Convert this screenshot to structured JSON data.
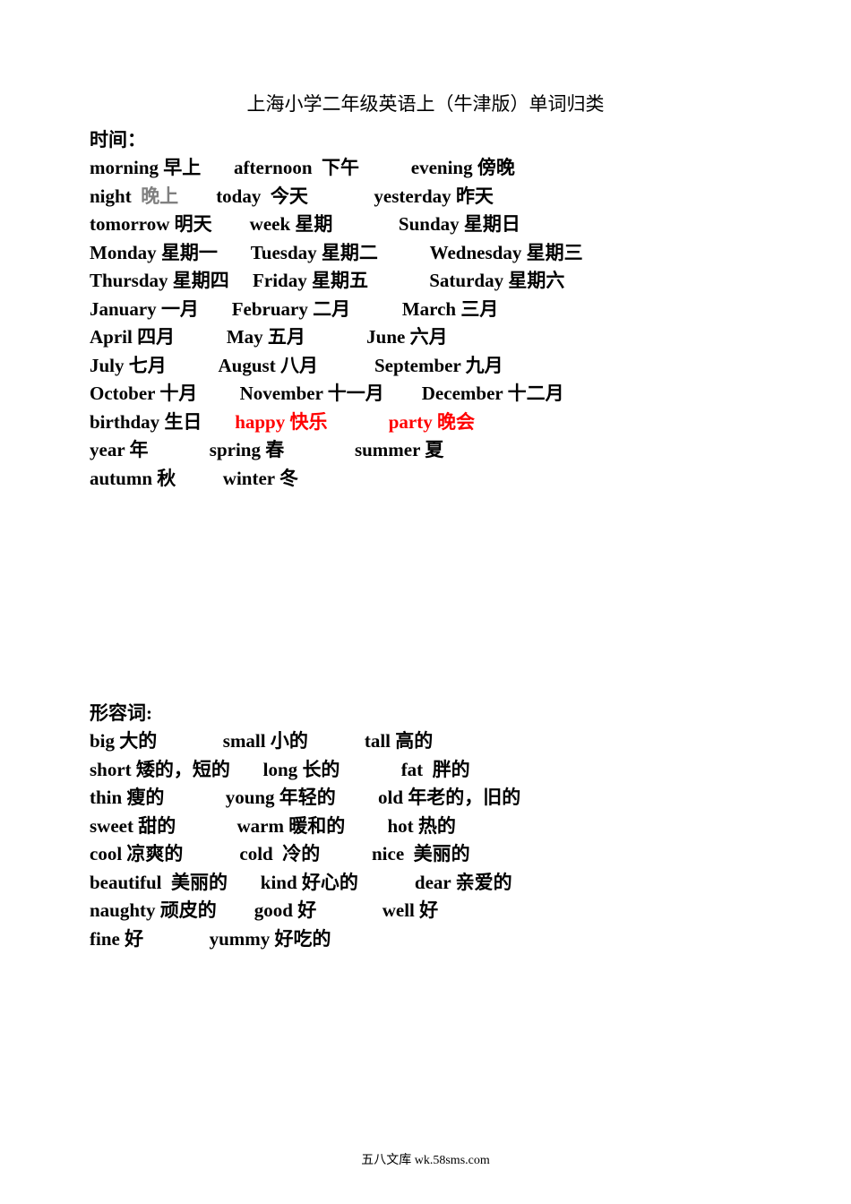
{
  "title": "上海小学二年级英语上（牛津版）单词归类",
  "section1_header": "时间：",
  "section2_header": "形容词:",
  "time_lines": [
    [
      {
        "en": "morning",
        "zh": " 早上       ",
        "bold": true
      },
      {
        "en": "afternoon ",
        "zh": " 下午           ",
        "bold": true
      },
      {
        "en": "evening",
        "zh": " 傍晚",
        "bold": true
      }
    ],
    [
      {
        "en": "night ",
        "zh": " 晚上        ",
        "bold": true,
        "zhGray": true
      },
      {
        "en": "today ",
        "zh": " 今天              ",
        "bold": true
      },
      {
        "en": "yesterday",
        "zh": " 昨天",
        "bold": true
      }
    ],
    [
      {
        "en": "tomorrow",
        "zh": " 明天        ",
        "bold": true
      },
      {
        "en": "week",
        "zh": " 星期              ",
        "bold": true
      },
      {
        "en": "Sunday",
        "zh": " 星期日",
        "bold": true
      }
    ],
    [
      {
        "en": "Monday",
        "zh": " 星期一       ",
        "bold": true
      },
      {
        "en": "Tuesday",
        "zh": " 星期二           ",
        "bold": true
      },
      {
        "en": "Wednesday",
        "zh": " 星期三",
        "bold": true
      }
    ],
    [
      {
        "en": "Thursday",
        "zh": " 星期四     ",
        "bold": true
      },
      {
        "en": "Friday",
        "zh": " 星期五             ",
        "bold": true
      },
      {
        "en": "Saturday",
        "zh": " 星期六",
        "bold": true
      }
    ],
    [
      {
        "en": "January",
        "zh": " 一月       ",
        "bold": true
      },
      {
        "en": "February",
        "zh": " 二月           ",
        "bold": true
      },
      {
        "en": "March",
        "zh": " 三月",
        "bold": true
      }
    ],
    [
      {
        "en": "April",
        "zh": " 四月           ",
        "bold": true
      },
      {
        "en": "May",
        "zh": " 五月             ",
        "bold": true
      },
      {
        "en": "June",
        "zh": " 六月",
        "bold": true
      }
    ],
    [
      {
        "en": "July",
        "zh": " 七月           ",
        "bold": true
      },
      {
        "en": "August",
        "zh": " 八月            ",
        "bold": true
      },
      {
        "en": "September",
        "zh": " 九月",
        "bold": true
      }
    ],
    [
      {
        "en": "October",
        "zh": " 十月         ",
        "bold": true
      },
      {
        "en": "November",
        "zh": " 十一月        ",
        "bold": true
      },
      {
        "en": "December",
        "zh": " 十二月",
        "bold": true
      }
    ],
    [
      {
        "en": "birthday",
        "zh": " 生日       ",
        "bold": true
      },
      {
        "en": "happy",
        "zh": " 快乐             ",
        "bold": true,
        "red": true
      },
      {
        "en": "party",
        "zh": " 晚会",
        "bold": true,
        "red": true
      }
    ],
    [
      {
        "en": "year",
        "zh": " 年             ",
        "bold": true
      },
      {
        "en": "spring",
        "zh": " 春               ",
        "bold": true
      },
      {
        "en": "summer",
        "zh": " 夏",
        "bold": true
      }
    ],
    [
      {
        "en": "autumn",
        "zh": " 秋          ",
        "bold": true
      },
      {
        "en": "winter",
        "zh": " 冬",
        "bold": true
      }
    ]
  ],
  "adj_lines": [
    [
      {
        "en": "big",
        "zh": " 大的              ",
        "bold": true
      },
      {
        "en": "small",
        "zh": " 小的            ",
        "bold": true
      },
      {
        "en": "tall",
        "zh": " 高的",
        "bold": true
      }
    ],
    [
      {
        "en": "short",
        "zh": " 矮的，短的       ",
        "bold": true
      },
      {
        "en": "long",
        "zh": " 长的             ",
        "bold": true
      },
      {
        "en": "fat ",
        "zh": " 胖的",
        "bold": true
      }
    ],
    [
      {
        "en": "thin",
        "zh": " 瘦的             ",
        "bold": true
      },
      {
        "en": "young",
        "zh": " 年轻的         ",
        "bold": true
      },
      {
        "en": "old",
        "zh": " 年老的，旧的",
        "bold": true
      }
    ],
    [
      {
        "en": "sweet",
        "zh": " 甜的             ",
        "bold": true
      },
      {
        "en": "warm",
        "zh": " 暖和的         ",
        "bold": true
      },
      {
        "en": "hot",
        "zh": " 热的",
        "bold": true
      }
    ],
    [
      {
        "en": "cool",
        "zh": " 凉爽的            ",
        "bold": true
      },
      {
        "en": "cold ",
        "zh": " 冷的           ",
        "bold": true
      },
      {
        "en": "nice ",
        "zh": " 美丽的",
        "bold": true
      }
    ],
    [
      {
        "en": "beautiful ",
        "zh": " 美丽的       ",
        "bold": true
      },
      {
        "en": "kind",
        "zh": " 好心的            ",
        "bold": true
      },
      {
        "en": "dear",
        "zh": " 亲爱的",
        "bold": true
      }
    ],
    [
      {
        "en": "naughty",
        "zh": " 顽皮的        ",
        "bold": true
      },
      {
        "en": "good",
        "zh": " 好              ",
        "bold": true
      },
      {
        "en": "well",
        "zh": " 好",
        "bold": true
      }
    ],
    [
      {
        "en": "fine",
        "zh": " 好              ",
        "bold": true
      },
      {
        "en": "yummy",
        "zh": " 好吃的",
        "bold": true
      }
    ]
  ],
  "footer": "五八文库 wk.58sms.com"
}
